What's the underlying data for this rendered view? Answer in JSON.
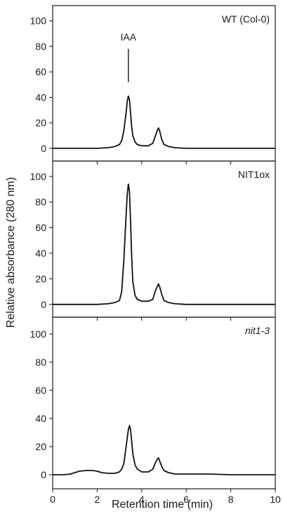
{
  "chart_data": {
    "type": "line",
    "xlabel": "Retention time (min)",
    "ylabel": "Relative absorbance (280 nm)",
    "xlim": [
      0,
      10
    ],
    "ylim": [
      -10,
      112
    ],
    "x_ticks": [
      0,
      2,
      4,
      6,
      8,
      10
    ],
    "y_ticks": [
      0,
      20,
      40,
      60,
      80,
      100
    ],
    "grid": false,
    "marker": {
      "label": "IAA",
      "x": 3.4,
      "y_from": 52,
      "y_to": 78
    },
    "panels": [
      {
        "title": "WT (Col-0)",
        "italic": false,
        "series": [
          {
            "x": [
              0,
              1,
              2,
              2.5,
              2.8,
              3.0,
              3.1,
              3.2,
              3.3,
              3.35,
              3.4,
              3.45,
              3.5,
              3.55,
              3.6,
              3.7,
              3.8,
              4.0,
              4.3,
              4.5,
              4.6,
              4.7,
              4.75,
              4.8,
              4.9,
              5.0,
              5.2,
              5.5,
              6,
              7,
              8,
              9,
              10
            ],
            "y": [
              0,
              0,
              0,
              0.5,
              1.5,
              3,
              6,
              14,
              28,
              37,
              41,
              38,
              28,
              17,
              10,
              5,
              3,
              2,
              2,
              4,
              9,
              14,
              16,
              14,
              7,
              3,
              1.5,
              0.5,
              0,
              0,
              0,
              0,
              0
            ]
          }
        ]
      },
      {
        "title": "NIT1ox",
        "italic": false,
        "series": [
          {
            "x": [
              0,
              1,
              2,
              2.5,
              2.8,
              3.0,
              3.1,
              3.2,
              3.3,
              3.35,
              3.4,
              3.45,
              3.5,
              3.55,
              3.6,
              3.7,
              3.8,
              4.0,
              4.3,
              4.5,
              4.6,
              4.7,
              4.75,
              4.8,
              4.9,
              5.0,
              5.2,
              5.5,
              6,
              7,
              8,
              9,
              10
            ],
            "y": [
              0,
              0,
              0,
              0.5,
              1.5,
              3,
              10,
              35,
              70,
              86,
              94,
              88,
              65,
              38,
              18,
              7,
              4,
              2.5,
              2.5,
              4,
              10,
              14,
              16,
              14,
              8,
              3,
              1.5,
              0.5,
              0,
              0,
              0,
              0,
              0
            ]
          }
        ]
      },
      {
        "title": "nit1-3",
        "italic": true,
        "series": [
          {
            "x": [
              0,
              0.5,
              0.8,
              1.0,
              1.2,
              1.5,
              1.8,
              2.0,
              2.2,
              2.5,
              2.8,
              3.0,
              3.1,
              3.2,
              3.3,
              3.4,
              3.45,
              3.5,
              3.55,
              3.6,
              3.7,
              3.8,
              4.0,
              4.3,
              4.5,
              4.6,
              4.7,
              4.75,
              4.8,
              4.9,
              5.0,
              5.2,
              5.5,
              6,
              7,
              8,
              9,
              10
            ],
            "y": [
              0,
              0,
              0.5,
              1.5,
              2.5,
              3,
              3,
              2.5,
              1.5,
              1,
              1,
              2,
              4,
              8,
              20,
              32,
              35,
              32,
              24,
              15,
              7,
              4,
              2,
              2,
              4,
              8,
              11,
              12,
              10,
              6,
              3,
              1.5,
              0.5,
              0.5,
              0.5,
              0,
              0,
              0
            ]
          }
        ]
      }
    ]
  }
}
